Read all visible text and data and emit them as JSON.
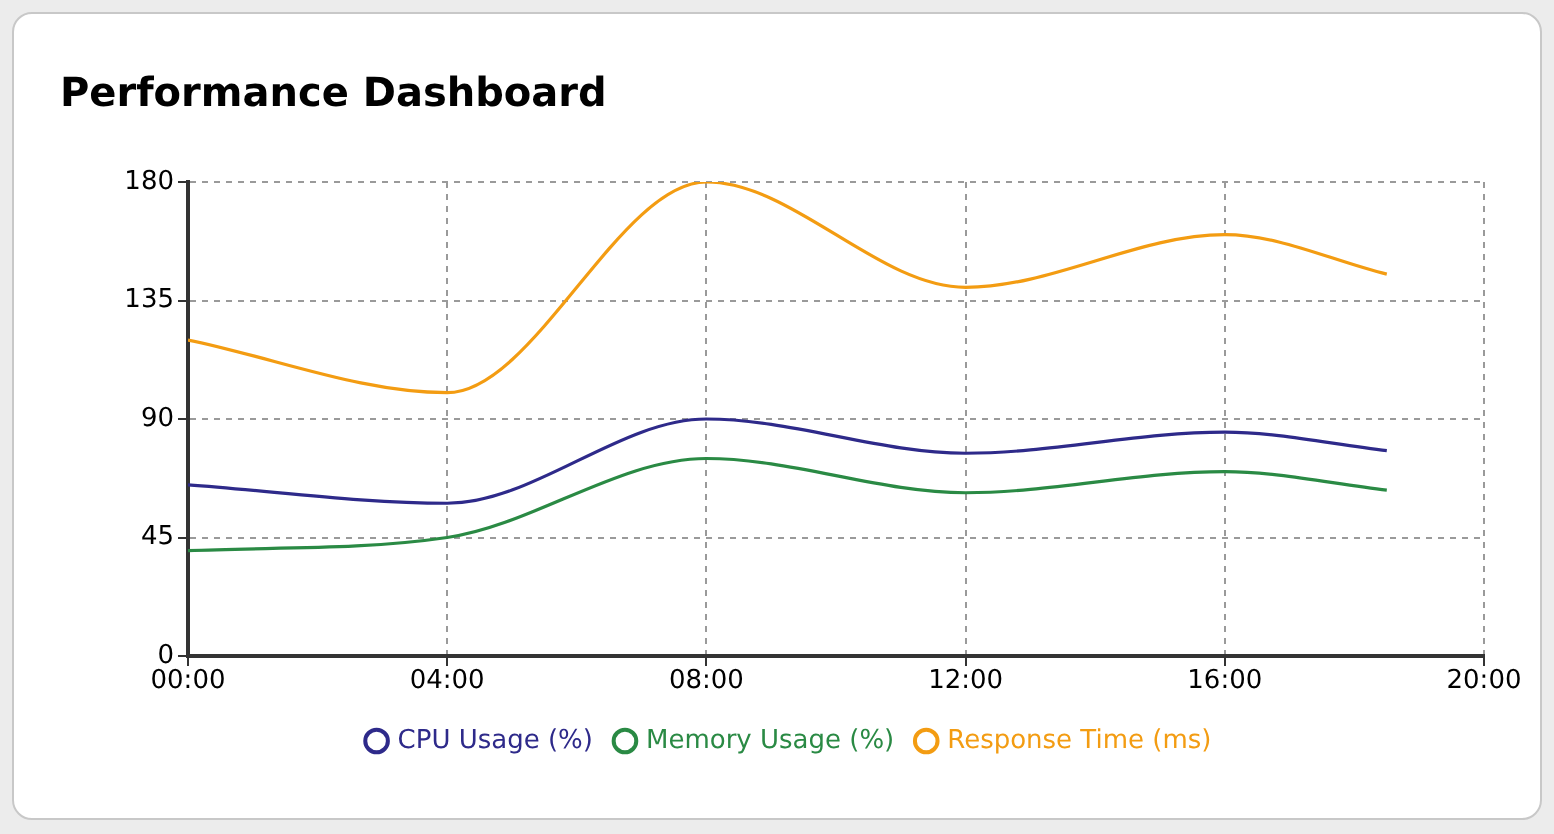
{
  "chart_data": {
    "type": "line",
    "title": "Performance Dashboard",
    "x": [
      0,
      4,
      8,
      12,
      16,
      18.5
    ],
    "xlim": [
      0,
      20
    ],
    "xticks": [
      {
        "value": 0,
        "label": "00:00"
      },
      {
        "value": 4,
        "label": "04:00"
      },
      {
        "value": 8,
        "label": "08:00"
      },
      {
        "value": 12,
        "label": "12:00"
      },
      {
        "value": 16,
        "label": "16:00"
      },
      {
        "value": 20,
        "label": "20:00"
      }
    ],
    "ylim": [
      0,
      180
    ],
    "yticks": [
      0,
      45,
      90,
      135,
      180
    ],
    "series": [
      {
        "name": "CPU Usage (%)",
        "color": "#2e2a8a",
        "values": [
          65,
          58,
          90,
          77,
          85,
          78
        ]
      },
      {
        "name": "Memory Usage (%)",
        "color": "#2a8a44",
        "values": [
          40,
          45,
          75,
          62,
          70,
          63
        ]
      },
      {
        "name": "Response Time (ms)",
        "color": "#f39c12",
        "values": [
          120,
          100,
          180,
          140,
          160,
          145
        ]
      }
    ],
    "grid": true,
    "legend": "bottom",
    "marker": "none",
    "line_style": "solid"
  }
}
